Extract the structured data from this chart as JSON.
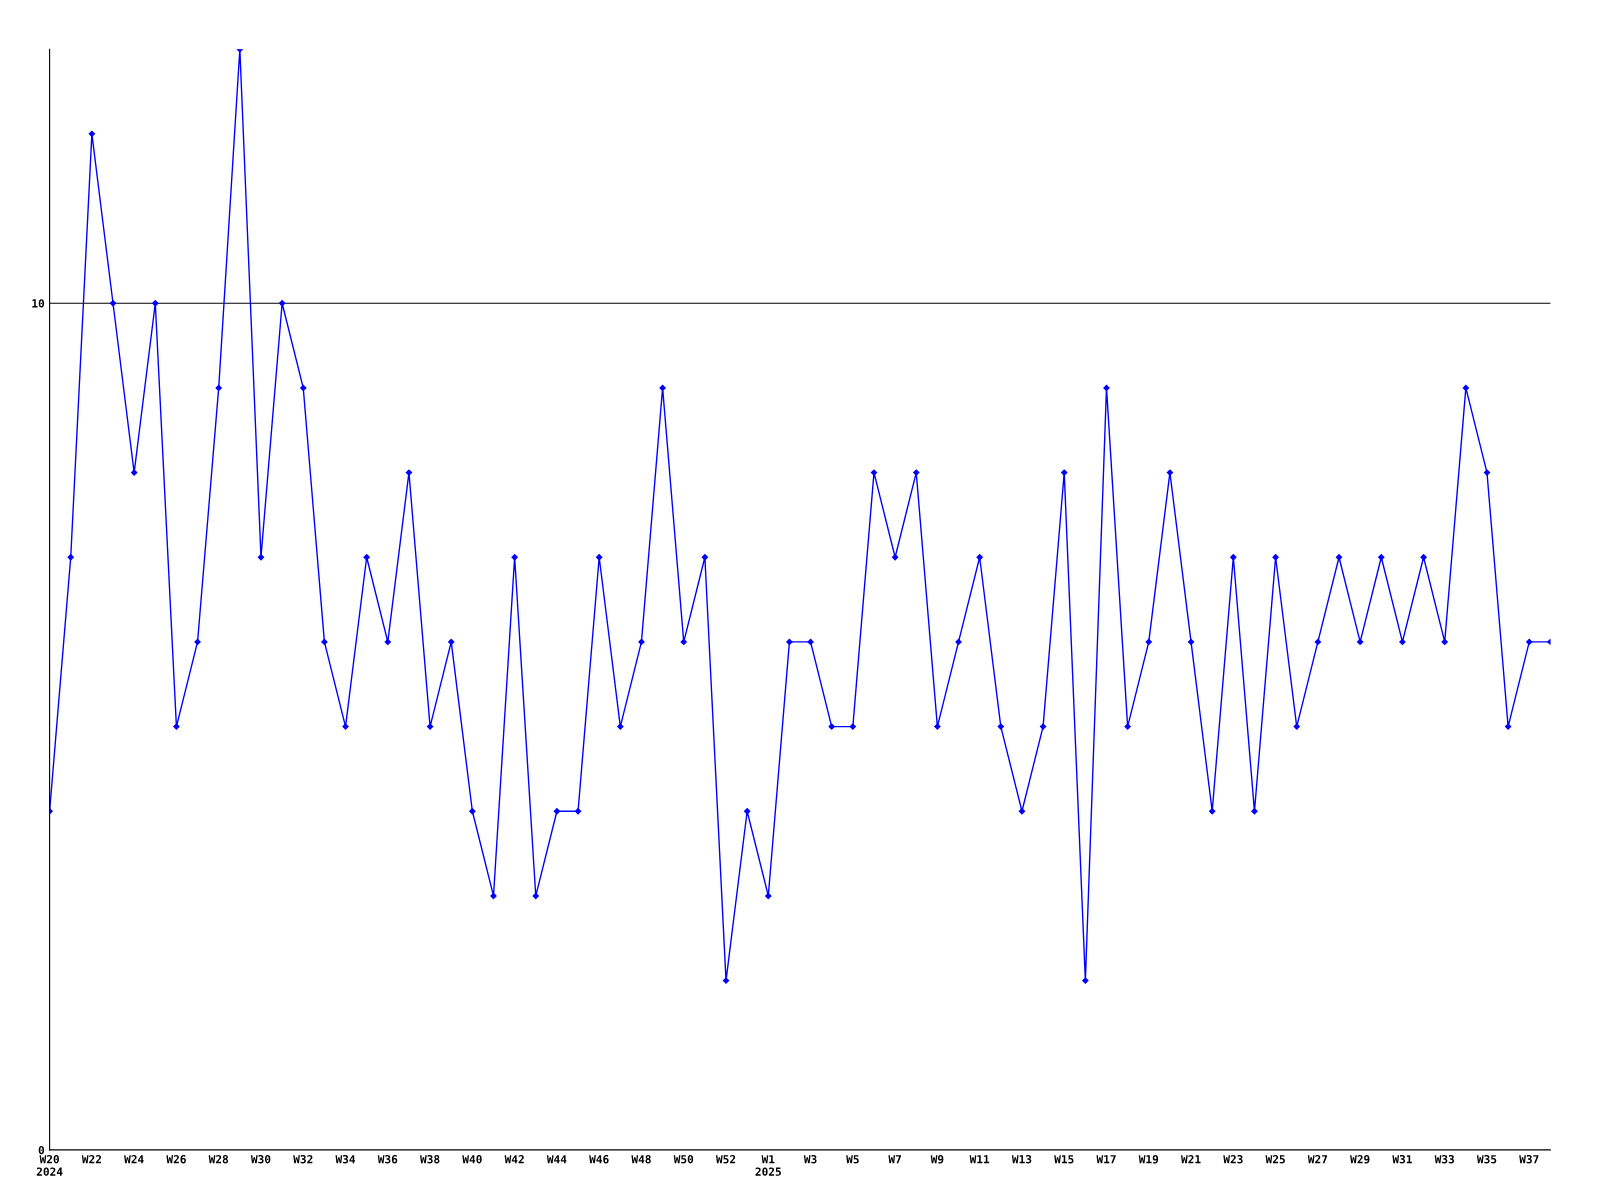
{
  "chart_data": {
    "type": "line",
    "categories": [
      "W20\n2024",
      null,
      "W22",
      null,
      "W24",
      null,
      "W26",
      null,
      "W28",
      null,
      "W30",
      null,
      "W32",
      null,
      "W34",
      null,
      "W36",
      null,
      "W38",
      null,
      "W40",
      null,
      "W42",
      null,
      "W44",
      null,
      "W46",
      null,
      "W48",
      null,
      "W50",
      null,
      "W52",
      null,
      "W1\n2025",
      null,
      "W3",
      null,
      "W5",
      null,
      "W7",
      null,
      "W9",
      null,
      "W11",
      null,
      "W13",
      null,
      "W15",
      null,
      "W17",
      null,
      "W19",
      null,
      "W21",
      null,
      "W23",
      null,
      "W25",
      null,
      "W27",
      null,
      "W29",
      null,
      "W31",
      null,
      "W33",
      null,
      "W35",
      null,
      "W37",
      null
    ],
    "series": [
      {
        "color": "#0000ff",
        "values": [
          4,
          7,
          12,
          10,
          8,
          10,
          5,
          6,
          9,
          13,
          7,
          10,
          9,
          6,
          5,
          7,
          6,
          8,
          5,
          6,
          4,
          3,
          7,
          3,
          4,
          4,
          7,
          5,
          6,
          9,
          6,
          7,
          2,
          4,
          3,
          6,
          6,
          5,
          5,
          8,
          7,
          8,
          5,
          6,
          7,
          5,
          4,
          5,
          8,
          2,
          9,
          5,
          6,
          8,
          6,
          4,
          7,
          4,
          7,
          5,
          6,
          7,
          6,
          7,
          6,
          7,
          6,
          9,
          8,
          5,
          6,
          6
        ]
      }
    ],
    "ylim": [
      0,
      13
    ],
    "yticks": [
      0,
      10
    ],
    "grid": "y",
    "marker": "diamond",
    "line_style": "solid",
    "legend": false
  }
}
